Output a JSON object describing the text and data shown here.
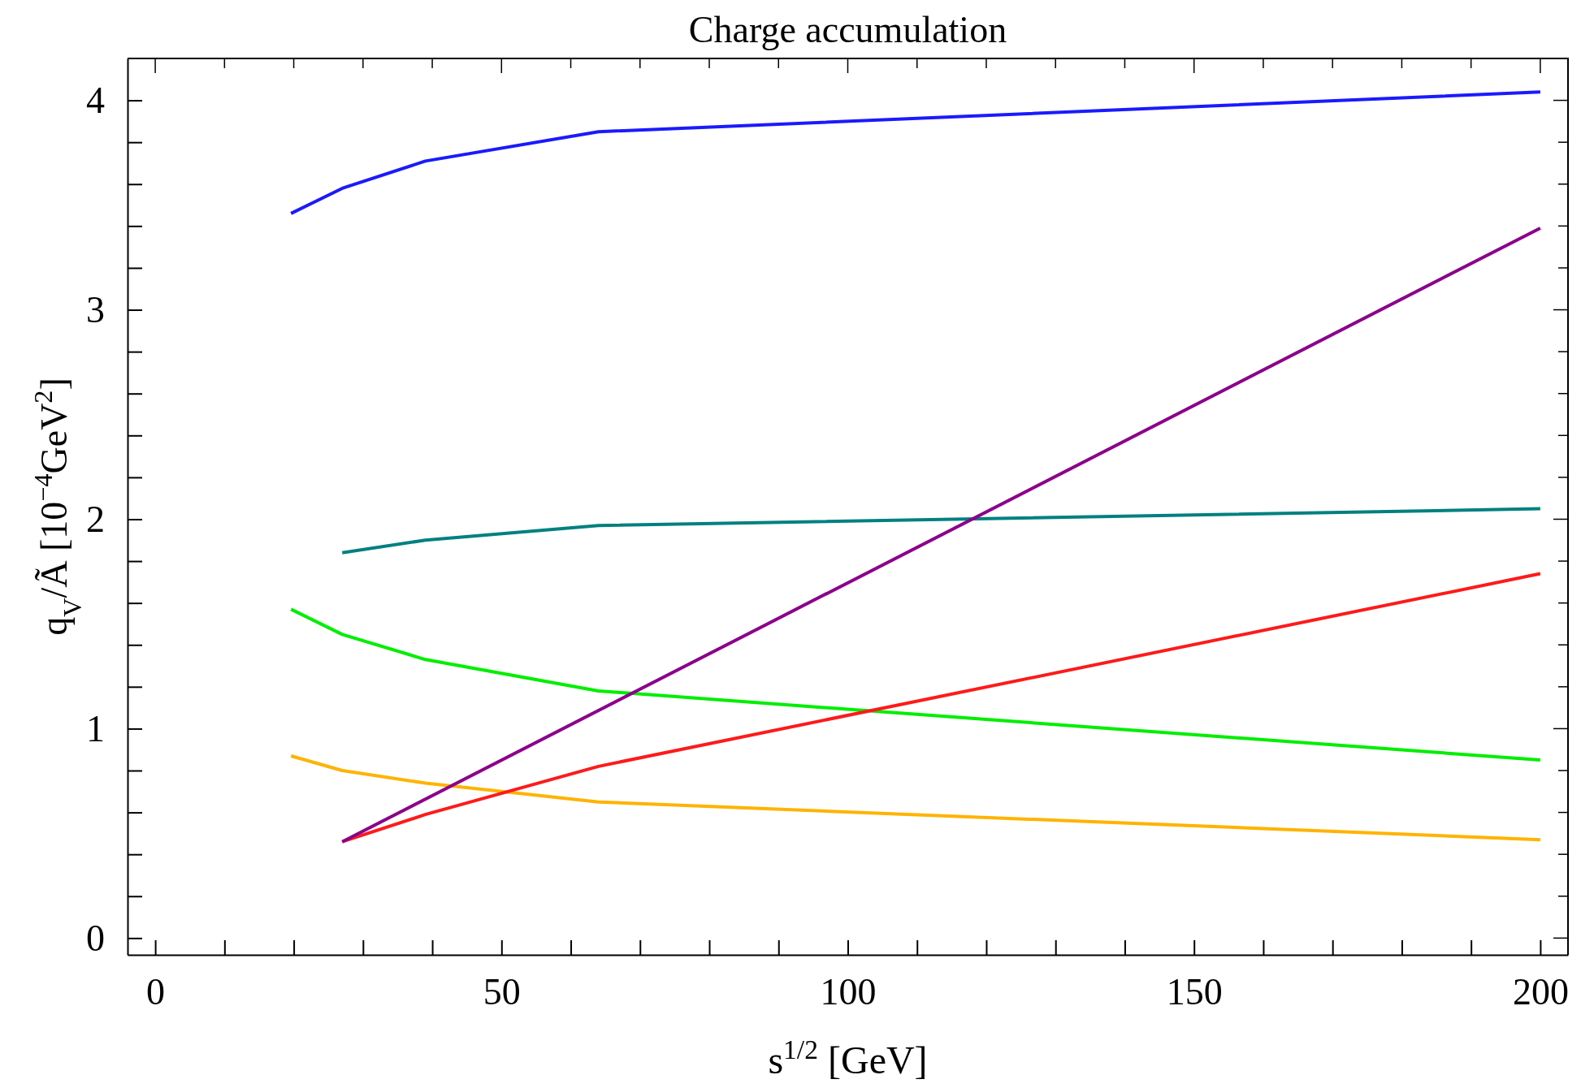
{
  "chart_data": {
    "type": "line",
    "title": "Charge accumulation",
    "xlabel": "s$^{1/2}$ [GeV]",
    "ylabel": "q$_{V}$/Ã [10$^{−4}$GeV$^{2}$]",
    "xlim": [
      -4,
      204
    ],
    "ylim": [
      -0.08,
      4.2
    ],
    "xticks": [
      0,
      {
        "value": 10,
        "label": null
      },
      {
        "value": 20,
        "label": null
      },
      {
        "value": 30,
        "label": null
      },
      {
        "value": 40,
        "label": null
      },
      50,
      {
        "value": 60,
        "label": null
      },
      {
        "value": 70,
        "label": null
      },
      {
        "value": 80,
        "label": null
      },
      {
        "value": 90,
        "label": null
      },
      100,
      {
        "value": 110,
        "label": null
      },
      {
        "value": 120,
        "label": null
      },
      {
        "value": 130,
        "label": null
      },
      {
        "value": 140,
        "label": null
      },
      150,
      {
        "value": 160,
        "label": null
      },
      {
        "value": 170,
        "label": null
      },
      {
        "value": 180,
        "label": null
      },
      {
        "value": 190,
        "label": null
      },
      200
    ],
    "yticks": [
      0,
      {
        "value": 0.2,
        "label": null
      },
      {
        "value": 0.4,
        "label": null
      },
      {
        "value": 0.6,
        "label": null
      },
      {
        "value": 0.8,
        "label": null
      },
      1,
      {
        "value": 1.2,
        "label": null
      },
      {
        "value": 1.4,
        "label": null
      },
      {
        "value": 1.6,
        "label": null
      },
      {
        "value": 1.8,
        "label": null
      },
      2,
      {
        "value": 2.2,
        "label": null
      },
      {
        "value": 2.4,
        "label": null
      },
      {
        "value": 2.6,
        "label": null
      },
      {
        "value": 2.8,
        "label": null
      },
      3,
      {
        "value": 3.2,
        "label": null
      },
      {
        "value": 3.4,
        "label": null
      },
      {
        "value": 3.6,
        "label": null
      },
      {
        "value": 3.8,
        "label": null
      },
      4
    ],
    "grid": false,
    "marker": "none",
    "line_style": "solid",
    "series": [
      {
        "color": "#1a1aff",
        "x": [
          19.6,
          27,
          39,
          64,
          200
        ],
        "values": [
          3.46,
          3.58,
          3.71,
          3.85,
          4.04
        ]
      },
      {
        "color": "#008080",
        "x": [
          27,
          39,
          64,
          200
        ],
        "values": [
          1.84,
          1.9,
          1.97,
          2.05
        ]
      },
      {
        "color": "#00ee00",
        "x": [
          19.6,
          27,
          39,
          64,
          200
        ],
        "values": [
          1.57,
          1.45,
          1.33,
          1.18,
          0.85
        ]
      },
      {
        "color": "#ffb300",
        "x": [
          19.6,
          27,
          39,
          64,
          200
        ],
        "values": [
          0.87,
          0.8,
          0.74,
          0.65,
          0.47
        ]
      },
      {
        "color": "#ff1a1a",
        "x": [
          27,
          39,
          64,
          200
        ],
        "values": [
          0.46,
          0.59,
          0.82,
          1.74
        ]
      },
      {
        "color": "#8b008b",
        "x": [
          27,
          200
        ],
        "values": [
          0.46,
          3.39
        ]
      }
    ]
  }
}
